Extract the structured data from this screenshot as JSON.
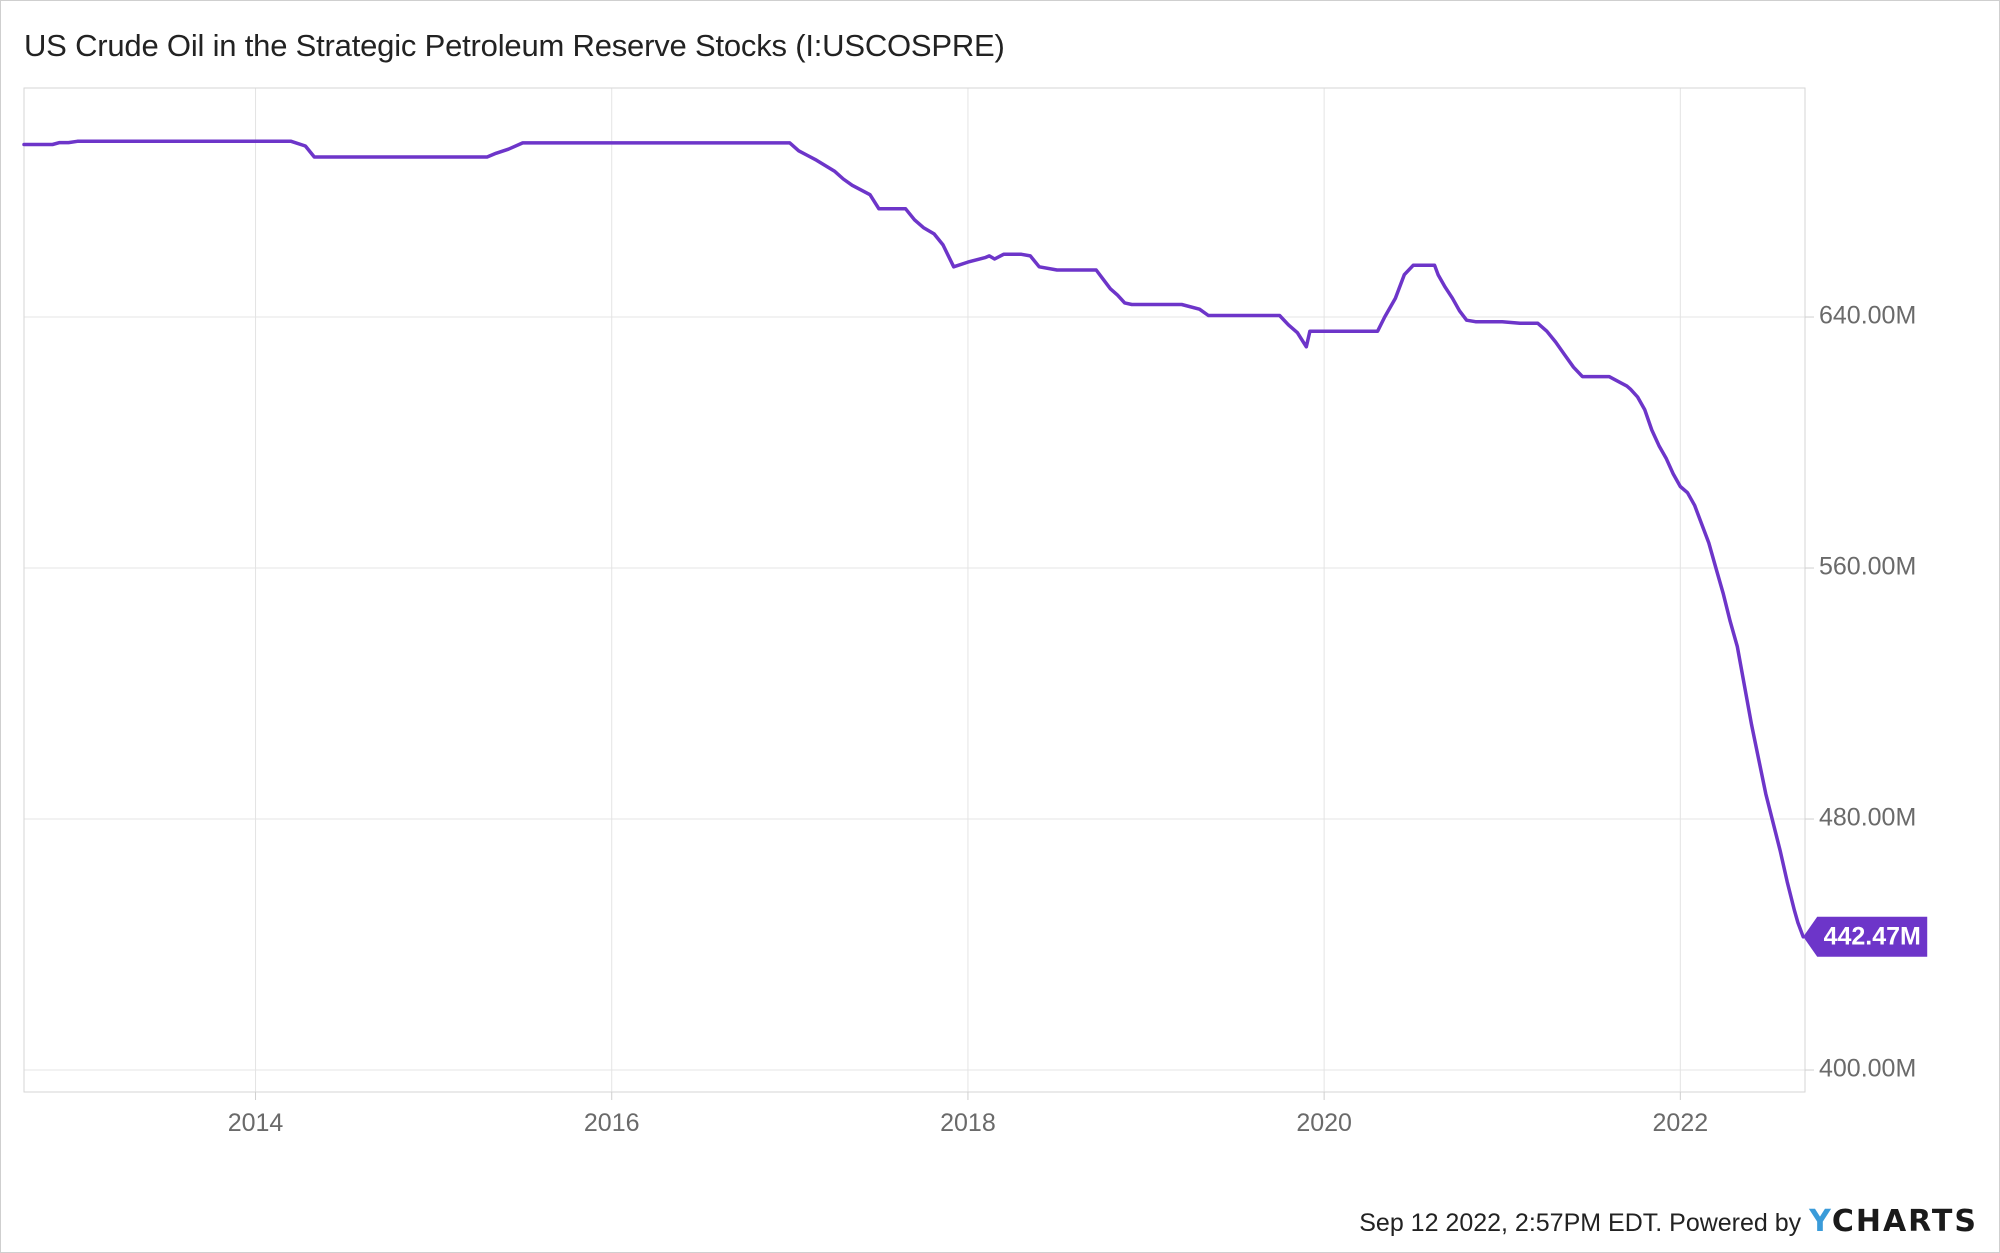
{
  "title": "US Crude Oil in the Strategic Petroleum Reserve Stocks (I:USCOSPRE)",
  "footer": {
    "timestamp": "Sep 12 2022, 2:57PM EDT. Powered by",
    "brand_prefix": "Y",
    "brand_rest": "CHARTS"
  },
  "colors": {
    "line": "#6d35c9",
    "grid": "#e4e4e4",
    "axis_text": "#6a6a6a",
    "last_value_bg": "#6d35c9",
    "last_value_text": "#ffffff"
  },
  "chart_data": {
    "type": "line",
    "title": "US Crude Oil in the Strategic Petroleum Reserve Stocks (I:USCOSPRE)",
    "xlabel": "",
    "ylabel": "",
    "xlim": [
      2012.7,
      2022.7
    ],
    "ylim": [
      393,
      713
    ],
    "grid": true,
    "y_axis_side": "right",
    "x_ticks": [
      {
        "value": 2014,
        "label": "2014"
      },
      {
        "value": 2016,
        "label": "2016"
      },
      {
        "value": 2018,
        "label": "2018"
      },
      {
        "value": 2020,
        "label": "2020"
      },
      {
        "value": 2022,
        "label": "2022"
      }
    ],
    "y_ticks": [
      {
        "value": 400,
        "label": "400.00M"
      },
      {
        "value": 480,
        "label": "480.00M"
      },
      {
        "value": 560,
        "label": "560.00M"
      },
      {
        "value": 640,
        "label": "640.00M"
      }
    ],
    "last_value": {
      "x": 2022.69,
      "y": 442.47,
      "label": "442.47M"
    },
    "series": [
      {
        "x": [
          2012.7,
          2012.86,
          2012.9,
          2012.95,
          2013.0,
          2013.5,
          2014.0,
          2014.2,
          2014.28,
          2014.33,
          2014.5,
          2015.0,
          2015.3,
          2015.35,
          2015.42,
          2015.5,
          2015.7,
          2016.0,
          2016.5,
          2016.95,
          2017.0,
          2017.05,
          2017.1,
          2017.15,
          2017.25,
          2017.3,
          2017.35,
          2017.45,
          2017.5,
          2017.55,
          2017.6,
          2017.65,
          2017.7,
          2017.75,
          2017.81,
          2017.86,
          2017.92,
          2018.0,
          2018.1,
          2018.12,
          2018.15,
          2018.2,
          2018.3,
          2018.35,
          2018.4,
          2018.5,
          2018.6,
          2018.72,
          2018.76,
          2018.8,
          2018.84,
          2018.88,
          2018.92,
          2019.0,
          2019.2,
          2019.3,
          2019.35,
          2019.4,
          2019.5,
          2019.6,
          2019.7,
          2019.75,
          2019.8,
          2019.85,
          2019.9,
          2019.92,
          2020.0,
          2020.15,
          2020.3,
          2020.34,
          2020.4,
          2020.45,
          2020.5,
          2020.55,
          2020.62,
          2020.64,
          2020.68,
          2020.72,
          2020.76,
          2020.8,
          2020.85,
          2020.9,
          2020.95,
          2021.0,
          2021.1,
          2021.2,
          2021.25,
          2021.3,
          2021.35,
          2021.4,
          2021.45,
          2021.5,
          2021.55,
          2021.6,
          2021.7,
          2021.72,
          2021.76,
          2021.8,
          2021.84,
          2021.88,
          2021.92,
          2021.96,
          2022.0,
          2022.04,
          2022.08,
          2022.12,
          2022.16,
          2022.2,
          2022.24,
          2022.28,
          2022.32,
          2022.4,
          2022.48,
          2022.56,
          2022.6,
          2022.64,
          2022.66,
          2022.69
        ],
        "values": [
          695.0,
          695.0,
          695.6,
          695.6,
          696.0,
          696.0,
          696.0,
          696.0,
          694.5,
          691.0,
          691.0,
          691.0,
          691.0,
          692.2,
          693.5,
          695.5,
          695.5,
          695.5,
          695.5,
          695.5,
          695.5,
          693.0,
          691.5,
          690.0,
          686.5,
          684.0,
          682.0,
          679.0,
          674.5,
          674.5,
          674.5,
          674.5,
          671.0,
          668.5,
          666.5,
          663.0,
          656.0,
          657.5,
          659.0,
          659.5,
          658.5,
          660.0,
          660.0,
          659.5,
          656.0,
          655.0,
          655.0,
          655.0,
          652.0,
          649.0,
          647.0,
          644.5,
          644.0,
          644.0,
          644.0,
          642.5,
          640.5,
          640.5,
          640.5,
          640.5,
          640.5,
          640.5,
          637.5,
          635.0,
          630.5,
          635.5,
          635.5,
          635.5,
          635.5,
          640.0,
          646.0,
          653.5,
          656.5,
          656.5,
          656.5,
          653.5,
          649.5,
          646.0,
          642.0,
          639.0,
          638.5,
          638.5,
          638.5,
          638.5,
          638.0,
          638.0,
          635.5,
          632.0,
          628.0,
          624.0,
          621.0,
          621.0,
          621.0,
          621.0,
          618.0,
          617.0,
          614.5,
          610.5,
          604.0,
          599.0,
          595.0,
          590.0,
          586.0,
          584.0,
          580.0,
          574.0,
          568.0,
          560.0,
          552.0,
          543.0,
          535.0,
          510.0,
          488.0,
          470.0,
          460.0,
          451.0,
          447.0,
          442.47
        ]
      }
    ]
  }
}
